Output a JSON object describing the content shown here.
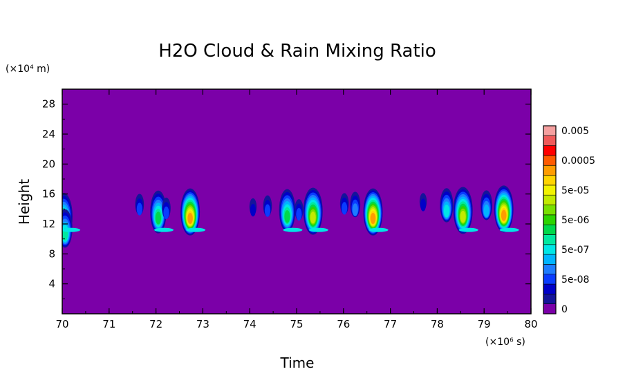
{
  "chart_data": {
    "type": "heatmap",
    "title": "H2O Cloud & Rain Mixing Ratio",
    "xlabel": "Time",
    "ylabel": "Height",
    "x_unit": "(×10⁶ s)",
    "y_unit": "(×10⁴ m)",
    "xlim": [
      70,
      80
    ],
    "ylim": [
      0,
      30
    ],
    "x_ticks": [
      "70",
      "71",
      "72",
      "73",
      "74",
      "75",
      "76",
      "77",
      "78",
      "79",
      "80"
    ],
    "y_ticks": [
      "4",
      "8",
      "12",
      "16",
      "20",
      "24",
      "28"
    ],
    "x_tick_values": [
      70,
      71,
      72,
      73,
      74,
      75,
      76,
      77,
      78,
      79,
      80
    ],
    "y_tick_values": [
      4,
      8,
      12,
      16,
      20,
      24,
      28
    ],
    "colorbar": {
      "levels": [
        0,
        1e-08,
        2e-08,
        5e-08,
        1e-07,
        2e-07,
        5e-07,
        1e-06,
        2e-06,
        5e-06,
        1e-05,
        2e-05,
        5e-05,
        0.0001,
        0.0002,
        0.0005,
        0.001,
        0.002,
        0.005
      ],
      "labels": [
        "0",
        "5e-08",
        "5e-07",
        "5e-06",
        "5e-05",
        "0.0005",
        "0.005"
      ],
      "label_values": [
        0,
        5e-08,
        5e-07,
        5e-06,
        5e-05,
        0.0005,
        0.005
      ],
      "colors": [
        "#7b00a8",
        "#14149a",
        "#0000c8",
        "#0a3cff",
        "#1e7cff",
        "#00b4ff",
        "#00e6e6",
        "#00e8a0",
        "#00d84a",
        "#2cd400",
        "#78e000",
        "#c2ea00",
        "#f2f200",
        "#ffd400",
        "#ff9c00",
        "#ff5a00",
        "#ff0000",
        "#f05a5a",
        "#f5a0a0"
      ],
      "background": "#7b00a8"
    },
    "cells": [
      {
        "t": 70.03,
        "h": 13.0,
        "level": 9
      },
      {
        "t": 70.06,
        "h": 11.4,
        "level": 7
      },
      {
        "t": 71.65,
        "h": 14.6,
        "level": 3
      },
      {
        "t": 72.05,
        "h": 13.6,
        "level": 8
      },
      {
        "t": 72.22,
        "h": 14.1,
        "level": 3
      },
      {
        "t": 72.73,
        "h": 13.6,
        "level": 14
      },
      {
        "t": 74.07,
        "h": 14.3,
        "level": 2
      },
      {
        "t": 74.38,
        "h": 14.4,
        "level": 3
      },
      {
        "t": 74.8,
        "h": 13.8,
        "level": 8
      },
      {
        "t": 75.05,
        "h": 13.9,
        "level": 3
      },
      {
        "t": 75.35,
        "h": 13.7,
        "level": 11
      },
      {
        "t": 76.02,
        "h": 14.7,
        "level": 3
      },
      {
        "t": 76.25,
        "h": 14.6,
        "level": 4
      },
      {
        "t": 76.63,
        "h": 13.6,
        "level": 14
      },
      {
        "t": 77.7,
        "h": 15.0,
        "level": 2
      },
      {
        "t": 78.2,
        "h": 14.5,
        "level": 6
      },
      {
        "t": 78.55,
        "h": 13.8,
        "level": 11
      },
      {
        "t": 79.05,
        "h": 14.5,
        "level": 5
      },
      {
        "t": 79.42,
        "h": 14.0,
        "level": 14
      }
    ]
  }
}
